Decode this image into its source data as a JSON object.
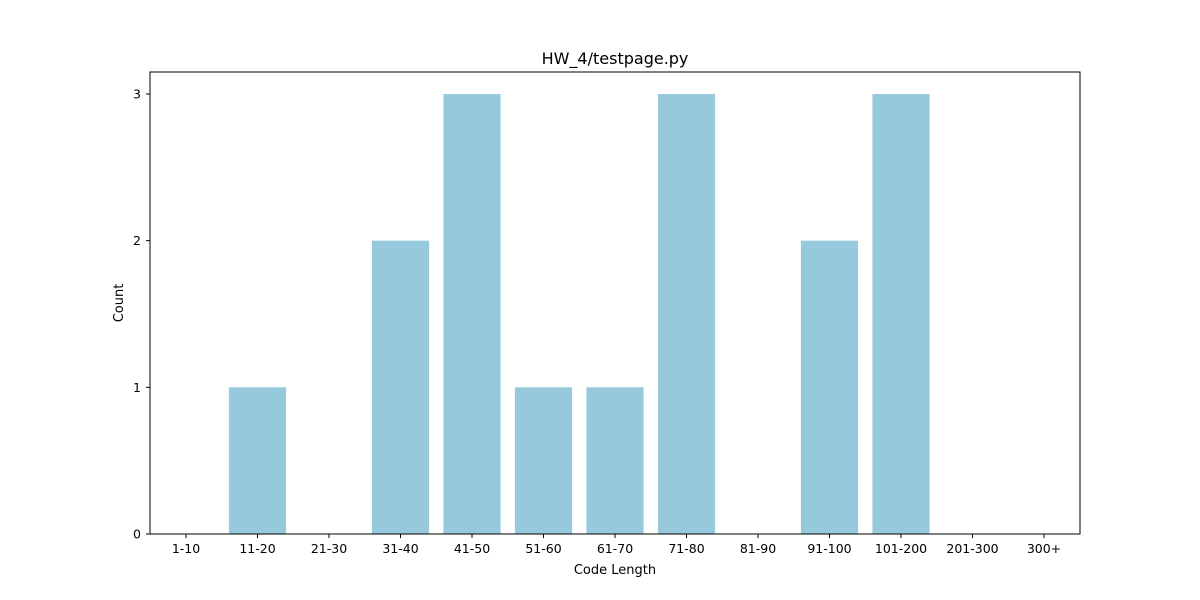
{
  "chart_data": {
    "type": "bar",
    "title": "HW_4/testpage.py",
    "xlabel": "Code Length",
    "ylabel": "Count",
    "categories": [
      "1-10",
      "11-20",
      "21-30",
      "31-40",
      "41-50",
      "51-60",
      "61-70",
      "71-80",
      "81-90",
      "91-100",
      "101-200",
      "201-300",
      "300+"
    ],
    "values": [
      0,
      1,
      0,
      2,
      3,
      1,
      1,
      3,
      0,
      2,
      3,
      0,
      0
    ],
    "ylim": [
      0,
      3.15
    ],
    "yticks": [
      0,
      1,
      2,
      3
    ],
    "grid": false,
    "legend": "none",
    "bar_color": "#96c9dc"
  }
}
